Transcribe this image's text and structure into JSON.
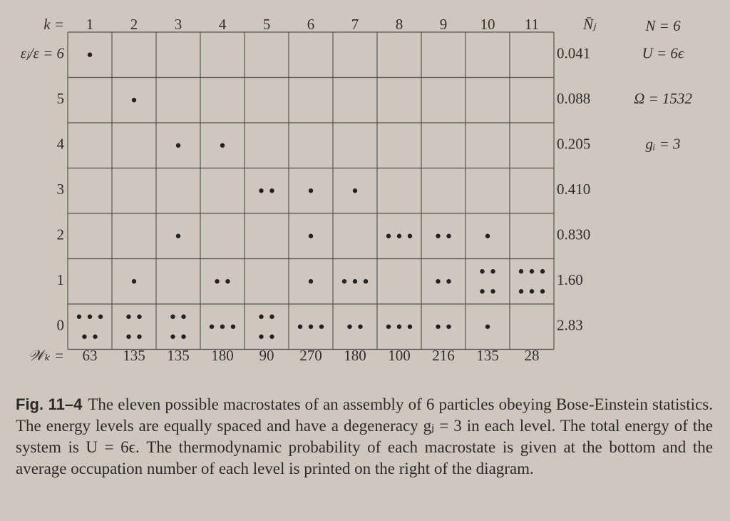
{
  "header": {
    "k_label": "k =",
    "columns": [
      "1",
      "2",
      "3",
      "4",
      "5",
      "6",
      "7",
      "8",
      "9",
      "10",
      "11"
    ],
    "nbar_label": "N̄ⱼ",
    "n_total": "N = 6"
  },
  "rows": [
    {
      "label": "εⱼ/ε = 6",
      "nbar": "0.041"
    },
    {
      "label": "5",
      "nbar": "0.088"
    },
    {
      "label": "4",
      "nbar": "0.205"
    },
    {
      "label": "3",
      "nbar": "0.410"
    },
    {
      "label": "2",
      "nbar": "0.830"
    },
    {
      "label": "1",
      "nbar": "1.60"
    },
    {
      "label": "0",
      "nbar": "2.83"
    }
  ],
  "side": [
    "U = 6ϵ",
    "Ω = 1532",
    "gᵢ = 3"
  ],
  "occupations": [
    [
      1,
      0,
      0,
      0,
      0,
      0,
      5
    ],
    [
      0,
      1,
      0,
      0,
      0,
      1,
      4
    ],
    [
      0,
      0,
      1,
      0,
      1,
      0,
      4
    ],
    [
      0,
      0,
      1,
      0,
      0,
      2,
      3
    ],
    [
      0,
      0,
      0,
      2,
      0,
      0,
      4
    ],
    [
      0,
      0,
      0,
      1,
      1,
      1,
      3
    ],
    [
      0,
      0,
      0,
      1,
      0,
      3,
      2
    ],
    [
      0,
      0,
      0,
      0,
      3,
      0,
      3
    ],
    [
      0,
      0,
      0,
      0,
      2,
      2,
      2
    ],
    [
      0,
      0,
      0,
      0,
      1,
      4,
      1
    ],
    [
      0,
      0,
      0,
      0,
      0,
      6,
      0
    ]
  ],
  "w_label": "𝒲ₖ =",
  "w_values": [
    "63",
    "135",
    "135",
    "180",
    "90",
    "270",
    "180",
    "100",
    "216",
    "135",
    "28"
  ],
  "caption": {
    "label": "Fig. 11–4",
    "text": "The eleven possible macrostates of an assembly of 6 particles obeying Bose-Einstein statistics. The energy levels are equally spaced and have a degeneracy gⱼ = 3 in each level. The total energy of the system is U = 6ϵ. The thermodynamic probability of each macrostate is given at the bottom and the average occupation number of each level is printed on the right of the diagram."
  }
}
